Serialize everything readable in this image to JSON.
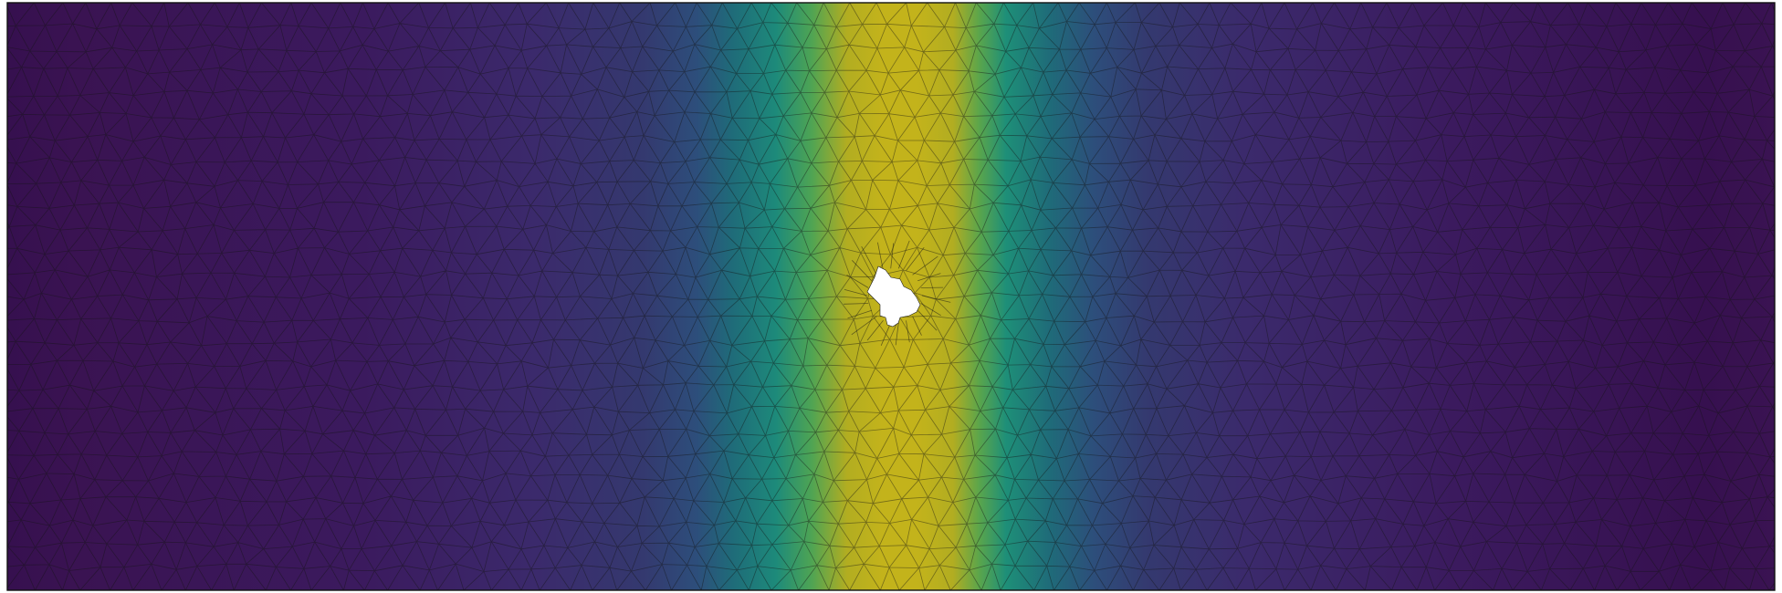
{
  "figure": {
    "kind": "finite-element-mesh-field",
    "colormap": "viridis",
    "colormap_stops": [
      "#440154",
      "#3b2f80",
      "#31538d",
      "#21918c",
      "#35b779",
      "#b8b520",
      "#c9b81a"
    ],
    "mesh_edge_color": "#1a1a1a",
    "domain_border_color": "#111111",
    "hole_color": "#ffffff",
    "field": {
      "description_shape": "vertical band",
      "band_center_x_fraction": 0.5,
      "band_peak": "yellow",
      "far_field": "dark purple"
    }
  }
}
